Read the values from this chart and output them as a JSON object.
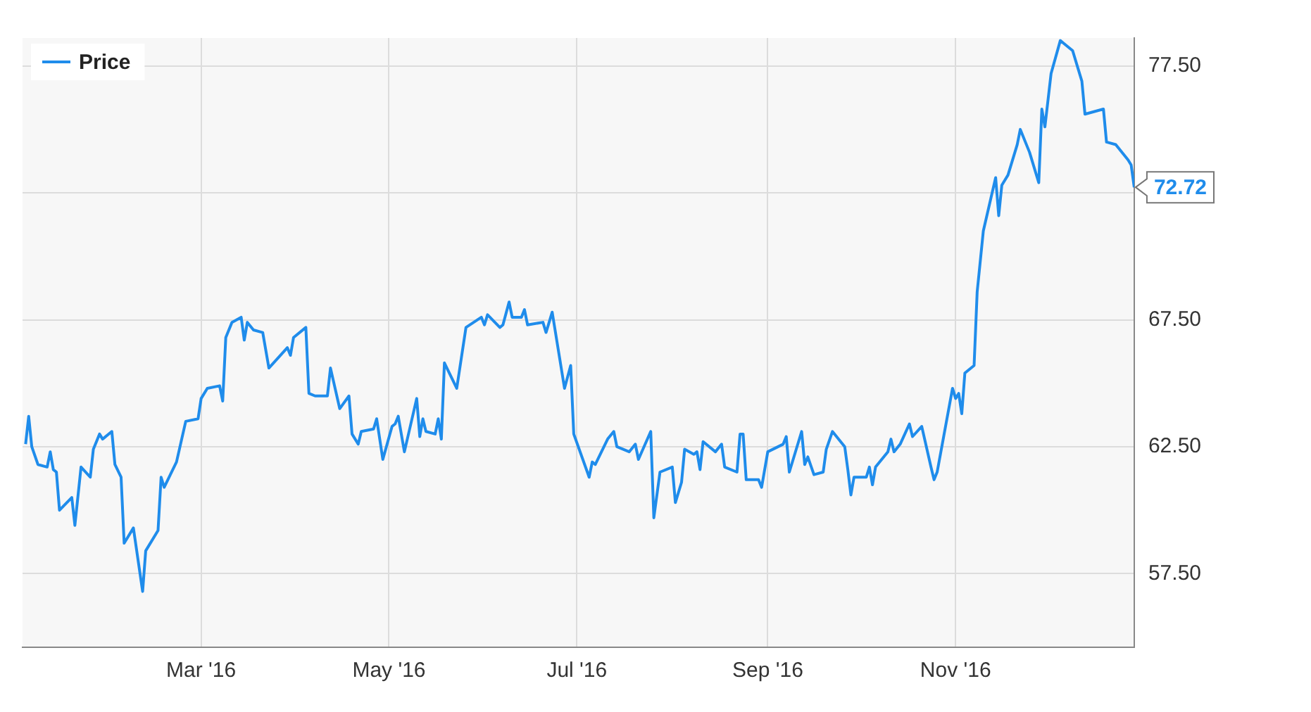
{
  "chart_data": {
    "type": "line",
    "x": [
      "2016-01-04",
      "2016-01-05",
      "2016-01-06",
      "2016-01-08",
      "2016-01-11",
      "2016-01-12",
      "2016-01-13",
      "2016-01-14",
      "2016-01-15",
      "2016-01-19",
      "2016-01-20",
      "2016-01-22",
      "2016-01-25",
      "2016-01-26",
      "2016-01-28",
      "2016-01-29",
      "2016-02-01",
      "2016-02-02",
      "2016-02-04",
      "2016-02-05",
      "2016-02-08",
      "2016-02-11",
      "2016-02-12",
      "2016-02-16",
      "2016-02-17",
      "2016-02-18",
      "2016-02-22",
      "2016-02-25",
      "2016-02-29",
      "2016-03-01",
      "2016-03-03",
      "2016-03-07",
      "2016-03-08",
      "2016-03-09",
      "2016-03-11",
      "2016-03-14",
      "2016-03-15",
      "2016-03-16",
      "2016-03-18",
      "2016-03-21",
      "2016-03-22",
      "2016-03-23",
      "2016-03-29",
      "2016-03-30",
      "2016-03-31",
      "2016-04-04",
      "2016-04-05",
      "2016-04-07",
      "2016-04-11",
      "2016-04-12",
      "2016-04-15",
      "2016-04-18",
      "2016-04-19",
      "2016-04-21",
      "2016-04-22",
      "2016-04-26",
      "2016-04-27",
      "2016-04-29",
      "2016-05-02",
      "2016-05-03",
      "2016-05-04",
      "2016-05-06",
      "2016-05-10",
      "2016-05-11",
      "2016-05-12",
      "2016-05-13",
      "2016-05-16",
      "2016-05-17",
      "2016-05-18",
      "2016-05-19",
      "2016-05-23",
      "2016-05-26",
      "2016-05-31",
      "2016-06-01",
      "2016-06-02",
      "2016-06-06",
      "2016-06-07",
      "2016-06-09",
      "2016-06-10",
      "2016-06-13",
      "2016-06-14",
      "2016-06-15",
      "2016-06-20",
      "2016-06-21",
      "2016-06-23",
      "2016-06-27",
      "2016-06-29",
      "2016-06-30",
      "2016-07-05",
      "2016-07-06",
      "2016-07-07",
      "2016-07-11",
      "2016-07-13",
      "2016-07-14",
      "2016-07-18",
      "2016-07-20",
      "2016-07-21",
      "2016-07-25",
      "2016-07-26",
      "2016-07-28",
      "2016-08-01",
      "2016-08-02",
      "2016-08-04",
      "2016-08-05",
      "2016-08-08",
      "2016-08-09",
      "2016-08-10",
      "2016-08-11",
      "2016-08-15",
      "2016-08-17",
      "2016-08-18",
      "2016-08-22",
      "2016-08-23",
      "2016-08-24",
      "2016-08-25",
      "2016-08-29",
      "2016-08-30",
      "2016-09-01",
      "2016-09-06",
      "2016-09-07",
      "2016-09-08",
      "2016-09-12",
      "2016-09-13",
      "2016-09-14",
      "2016-09-16",
      "2016-09-19",
      "2016-09-20",
      "2016-09-22",
      "2016-09-26",
      "2016-09-27",
      "2016-09-28",
      "2016-09-29",
      "2016-10-03",
      "2016-10-04",
      "2016-10-05",
      "2016-10-06",
      "2016-10-10",
      "2016-10-11",
      "2016-10-12",
      "2016-10-14",
      "2016-10-17",
      "2016-10-18",
      "2016-10-21",
      "2016-10-24",
      "2016-10-25",
      "2016-10-26",
      "2016-10-31",
      "2016-11-01",
      "2016-11-02",
      "2016-11-03",
      "2016-11-04",
      "2016-11-07",
      "2016-11-08",
      "2016-11-10",
      "2016-11-14",
      "2016-11-15",
      "2016-11-16",
      "2016-11-18",
      "2016-11-21",
      "2016-11-22",
      "2016-11-25",
      "2016-11-28",
      "2016-11-29",
      "2016-11-30",
      "2016-12-02",
      "2016-12-05",
      "2016-12-06",
      "2016-12-09",
      "2016-12-12",
      "2016-12-13",
      "2016-12-19",
      "2016-12-20",
      "2016-12-23",
      "2016-12-27",
      "2016-12-28",
      "2016-12-29"
    ],
    "series": [
      {
        "name": "Price",
        "color": "#1f8ceb",
        "values": [
          62.6,
          63.7,
          62.5,
          61.8,
          61.7,
          62.3,
          61.6,
          61.5,
          60.0,
          60.5,
          59.4,
          61.7,
          61.3,
          62.4,
          63.0,
          62.8,
          63.1,
          61.8,
          61.3,
          58.7,
          59.3,
          56.8,
          58.4,
          59.2,
          61.3,
          60.9,
          61.9,
          63.5,
          63.6,
          64.4,
          64.8,
          64.9,
          64.3,
          66.8,
          67.4,
          67.6,
          66.7,
          67.4,
          67.1,
          67.0,
          66.3,
          65.6,
          66.4,
          66.1,
          66.8,
          67.2,
          64.6,
          64.5,
          64.5,
          65.6,
          64.0,
          64.5,
          63.0,
          62.6,
          63.1,
          63.2,
          63.6,
          62.0,
          63.3,
          63.4,
          63.7,
          62.3,
          64.4,
          62.9,
          63.6,
          63.1,
          63.0,
          63.6,
          62.8,
          65.8,
          64.8,
          67.2,
          67.6,
          67.3,
          67.7,
          67.2,
          67.3,
          68.2,
          67.6,
          67.6,
          67.9,
          67.3,
          67.4,
          67.0,
          67.8,
          64.8,
          65.7,
          63.0,
          61.3,
          61.9,
          61.8,
          62.8,
          63.1,
          62.5,
          62.3,
          62.6,
          62.0,
          63.1,
          59.7,
          61.5,
          61.7,
          60.3,
          61.1,
          62.4,
          62.2,
          62.3,
          61.6,
          62.7,
          62.3,
          62.6,
          61.7,
          61.5,
          63.0,
          63.0,
          61.2,
          61.2,
          60.9,
          62.3,
          62.6,
          62.9,
          61.5,
          63.1,
          61.8,
          62.1,
          61.4,
          61.5,
          62.4,
          63.1,
          62.5,
          61.6,
          60.6,
          61.3,
          61.3,
          61.7,
          61.0,
          61.7,
          62.3,
          62.8,
          62.3,
          62.6,
          63.4,
          62.9,
          63.3,
          61.7,
          61.2,
          61.5,
          64.8,
          64.4,
          64.6,
          63.8,
          65.4,
          65.7,
          68.6,
          71.0,
          73.1,
          71.6,
          72.8,
          73.2,
          74.4,
          75.0,
          74.1,
          72.9,
          75.8,
          75.1,
          77.2,
          78.5,
          78.4,
          78.1,
          76.9,
          75.6,
          75.8,
          74.5,
          74.4,
          73.8,
          73.6,
          72.72
        ]
      }
    ],
    "xlim": [
      "2016-01-03",
      "2016-12-29"
    ],
    "xticks": [
      {
        "value": "2016-03-01",
        "label": "Mar '16"
      },
      {
        "value": "2016-05-01",
        "label": "May '16"
      },
      {
        "value": "2016-07-01",
        "label": "Jul '16"
      },
      {
        "value": "2016-09-01",
        "label": "Sep '16"
      },
      {
        "value": "2016-11-01",
        "label": "Nov '16"
      }
    ],
    "ylim": [
      54.6,
      78.6
    ],
    "yticks": [
      {
        "value": 57.5,
        "label": "57.50"
      },
      {
        "value": 62.5,
        "label": "62.50"
      },
      {
        "value": 67.5,
        "label": "67.50"
      },
      {
        "value": 72.5,
        "label": null
      },
      {
        "value": 77.5,
        "label": "77.50"
      }
    ],
    "annotations": [
      {
        "text": "72.72",
        "x": "2016-12-29",
        "y": 72.72
      }
    ],
    "grid": true,
    "legend": "top left",
    "marker": "none",
    "line_style": "solid"
  }
}
